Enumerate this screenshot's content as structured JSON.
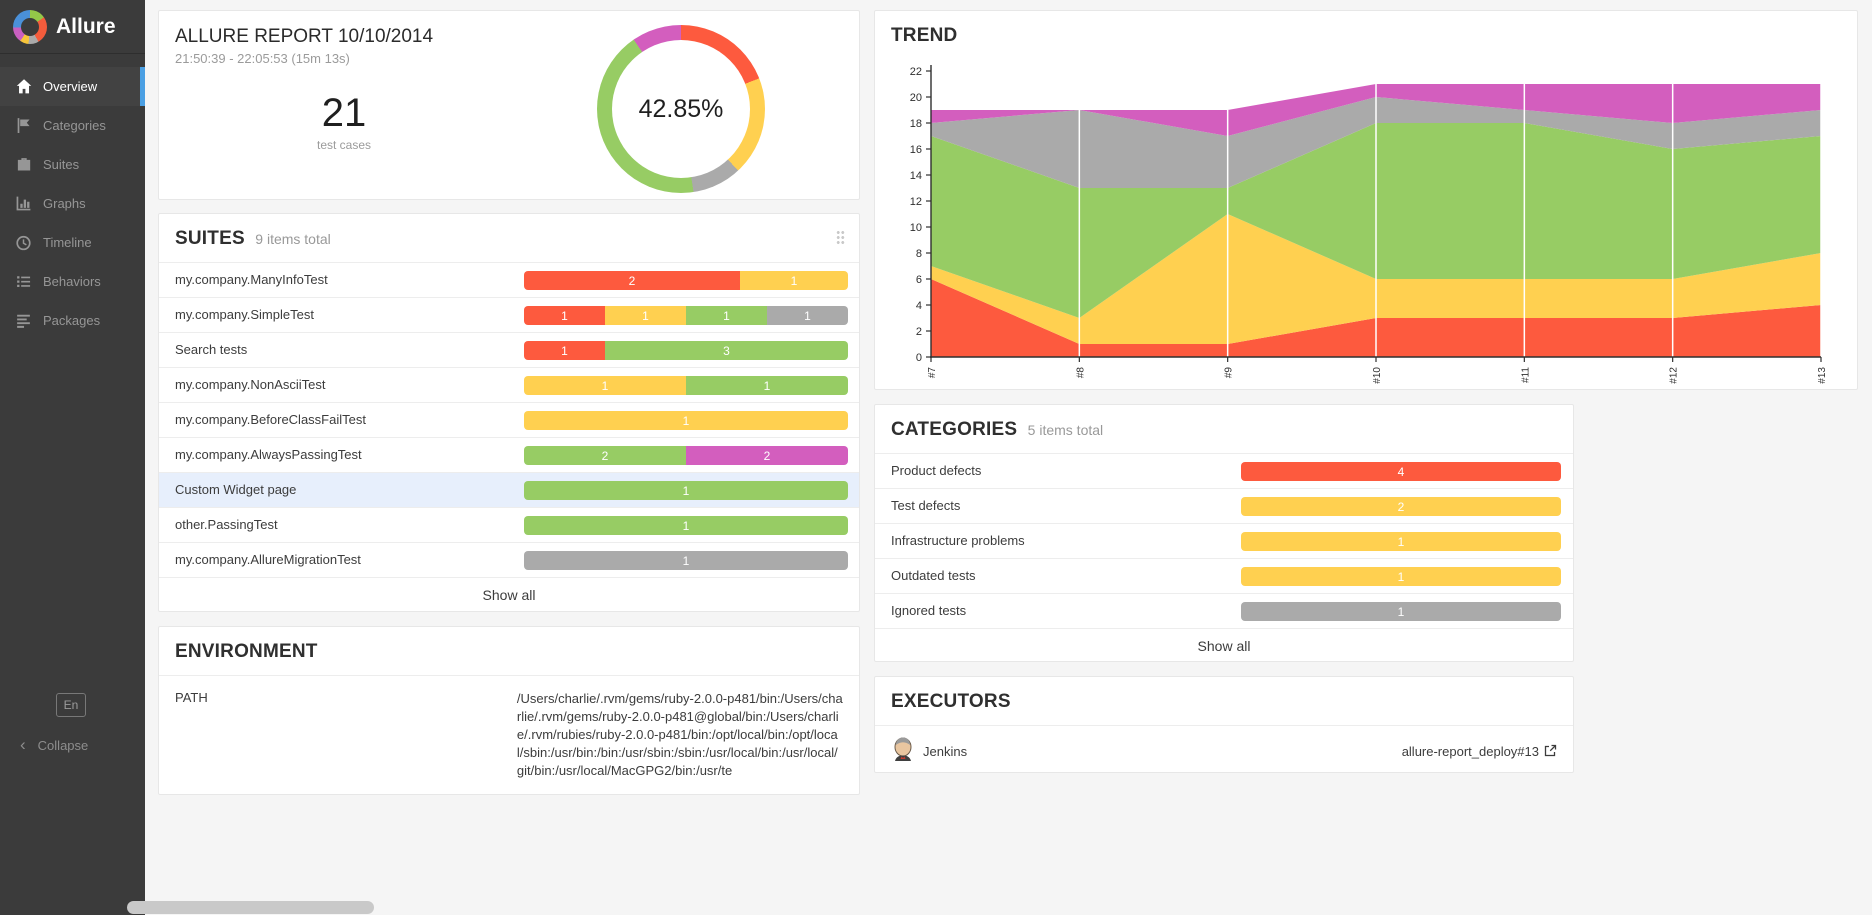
{
  "status_colors": {
    "failed": "#fd5a3e",
    "broken": "#ffd050",
    "passed": "#97cc64",
    "skipped": "#aaaaaa",
    "unknown": "#d35ebe"
  },
  "sidebar": {
    "brand": "Allure",
    "items": [
      {
        "label": "Overview",
        "icon": "home-icon",
        "active": true
      },
      {
        "label": "Categories",
        "icon": "flag-icon",
        "active": false
      },
      {
        "label": "Suites",
        "icon": "briefcase-icon",
        "active": false
      },
      {
        "label": "Graphs",
        "icon": "bar-chart-icon",
        "active": false
      },
      {
        "label": "Timeline",
        "icon": "clock-icon",
        "active": false
      },
      {
        "label": "Behaviors",
        "icon": "list-icon",
        "active": false
      },
      {
        "label": "Packages",
        "icon": "align-left-icon",
        "active": false
      }
    ],
    "lang": "En",
    "collapse": "Collapse"
  },
  "overview_card": {
    "title": "ALLURE REPORT 10/10/2014",
    "subtitle": "21:50:39 - 22:05:53 (15m 13s)",
    "total": "21",
    "total_label": "test cases",
    "percent": "42.85%",
    "donut": [
      {
        "status": "failed",
        "count": 4
      },
      {
        "status": "broken",
        "count": 4
      },
      {
        "status": "skipped",
        "count": 2
      },
      {
        "status": "passed",
        "count": 9
      },
      {
        "status": "unknown",
        "count": 2
      }
    ]
  },
  "suites": {
    "title": "SUITES",
    "subtitle": "9 items total",
    "show_all": "Show all",
    "items": [
      {
        "name": "my.company.ManyInfoTest",
        "highlighted": false,
        "segments": [
          {
            "status": "failed",
            "count": 2
          },
          {
            "status": "broken",
            "count": 1
          }
        ]
      },
      {
        "name": "my.company.SimpleTest",
        "highlighted": false,
        "segments": [
          {
            "status": "failed",
            "count": 1
          },
          {
            "status": "broken",
            "count": 1
          },
          {
            "status": "passed",
            "count": 1
          },
          {
            "status": "skipped",
            "count": 1
          }
        ]
      },
      {
        "name": "Search tests",
        "highlighted": false,
        "segments": [
          {
            "status": "failed",
            "count": 1
          },
          {
            "status": "passed",
            "count": 3
          }
        ]
      },
      {
        "name": "my.company.NonAsciiTest",
        "highlighted": false,
        "segments": [
          {
            "status": "broken",
            "count": 1
          },
          {
            "status": "passed",
            "count": 1
          }
        ]
      },
      {
        "name": "my.company.BeforeClassFailTest",
        "highlighted": false,
        "segments": [
          {
            "status": "broken",
            "count": 1
          }
        ]
      },
      {
        "name": "my.company.AlwaysPassingTest",
        "highlighted": false,
        "segments": [
          {
            "status": "passed",
            "count": 2
          },
          {
            "status": "unknown",
            "count": 2
          }
        ]
      },
      {
        "name": "Custom Widget page",
        "highlighted": true,
        "segments": [
          {
            "status": "passed",
            "count": 1
          }
        ]
      },
      {
        "name": "other.PassingTest",
        "highlighted": false,
        "segments": [
          {
            "status": "passed",
            "count": 1
          }
        ]
      },
      {
        "name": "my.company.AllureMigrationTest",
        "highlighted": false,
        "segments": [
          {
            "status": "skipped",
            "count": 1
          }
        ]
      }
    ]
  },
  "environment": {
    "title": "ENVIRONMENT",
    "rows": [
      {
        "key": "PATH",
        "value": "/Users/charlie/.rvm/gems/ruby-2.0.0-p481/bin:/Users/charlie/.rvm/gems/ruby-2.0.0-p481@global/bin:/Users/charlie/.rvm/rubies/ruby-2.0.0-p481/bin:/opt/local/bin:/opt/local/sbin:/usr/bin:/bin:/usr/sbin:/sbin:/usr/local/bin:/usr/local/git/bin:/usr/local/MacGPG2/bin:/usr/te"
      }
    ]
  },
  "trend": {
    "title": "TREND"
  },
  "chart_data": {
    "type": "area",
    "title": "TREND",
    "x_labels": [
      "#7",
      "#8",
      "#9",
      "#10",
      "#11",
      "#12",
      "#13"
    ],
    "ylim": [
      0,
      22
    ],
    "y_tick_step": 2,
    "grid": "vertical-white-lines",
    "legend": false,
    "stacked": true,
    "series": [
      {
        "name": "failed",
        "color": "#fd5a3e",
        "values": [
          6,
          1,
          1,
          3,
          3,
          3,
          4
        ]
      },
      {
        "name": "broken",
        "color": "#ffd050",
        "values": [
          1,
          2,
          10,
          3,
          3,
          3,
          4
        ]
      },
      {
        "name": "passed",
        "color": "#97cc64",
        "values": [
          10,
          10,
          2,
          12,
          12,
          10,
          9
        ]
      },
      {
        "name": "skipped",
        "color": "#aaaaaa",
        "values": [
          1,
          6,
          4,
          2,
          1,
          2,
          2
        ]
      },
      {
        "name": "unknown",
        "color": "#d35ebe",
        "values": [
          1,
          0,
          2,
          1,
          2,
          3,
          2
        ]
      }
    ]
  },
  "categories": {
    "title": "CATEGORIES",
    "subtitle": "5 items total",
    "show_all": "Show all",
    "items": [
      {
        "name": "Product defects",
        "highlighted": false,
        "segments": [
          {
            "status": "failed",
            "count": 4
          }
        ]
      },
      {
        "name": "Test defects",
        "highlighted": false,
        "segments": [
          {
            "status": "broken",
            "count": 2
          }
        ]
      },
      {
        "name": "Infrastructure problems",
        "highlighted": false,
        "segments": [
          {
            "status": "broken",
            "count": 1
          }
        ]
      },
      {
        "name": "Outdated tests",
        "highlighted": false,
        "segments": [
          {
            "status": "broken",
            "count": 1
          }
        ]
      },
      {
        "name": "Ignored tests",
        "highlighted": false,
        "segments": [
          {
            "status": "skipped",
            "count": 1
          }
        ]
      }
    ]
  },
  "executors": {
    "title": "EXECUTORS",
    "items": [
      {
        "name": "Jenkins",
        "build": "allure-report_deploy#13"
      }
    ]
  }
}
